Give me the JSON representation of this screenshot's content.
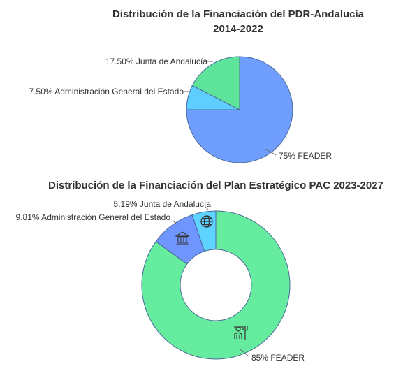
{
  "chart_data": [
    {
      "type": "pie",
      "title_lines": [
        "Distribución de la Financiación del PDR-Andalucía",
        "2014-2022"
      ],
      "slices": [
        {
          "label": "75% FEADER",
          "value": 75,
          "color": "#6f9eff"
        },
        {
          "label": "7.50% Administración General del Estado",
          "value": 7.5,
          "color": "#5ecdff"
        },
        {
          "label": "17.50% Junta de Andalucía",
          "value": 17.5,
          "color": "#5ee39b"
        }
      ]
    },
    {
      "type": "pie",
      "variant": "donut",
      "title_lines": [
        "Distribución de la Financiación del Plan Estratégico PAC 2023-2027"
      ],
      "slices": [
        {
          "label": "85% FEADER",
          "value": 85,
          "color": "#66ec9e",
          "icon": "farmer-icon"
        },
        {
          "label": "9.81% Administración General del Estado",
          "value": 9.81,
          "color": "#6f96ff",
          "icon": "government-building-icon"
        },
        {
          "label": "5.19% Junta de Andalucía",
          "value": 5.19,
          "color": "#5ed3ff",
          "icon": "globe-icon"
        }
      ]
    }
  ]
}
